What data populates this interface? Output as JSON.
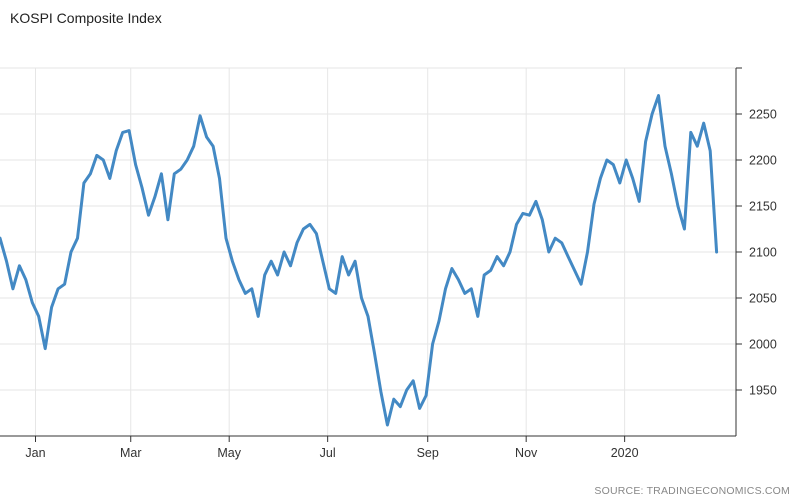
{
  "chart_data": {
    "type": "line",
    "title": "KOSPI Composite Index",
    "source": "SOURCE: TRADINGECONOMICS.COM",
    "y_ticks": [
      1950,
      2000,
      2050,
      2100,
      2150,
      2200,
      2250
    ],
    "ylim": [
      1900,
      2300
    ],
    "x_tick_labels": [
      "Jan",
      "Mar",
      "May",
      "Jul",
      "Sep",
      "Nov",
      "2020"
    ],
    "x_ticks": [
      "2019-01-01",
      "2019-03-01",
      "2019-05-01",
      "2019-07-01",
      "2019-09-01",
      "2019-11-01",
      "2020-01-01"
    ],
    "xlim": [
      "2018-12-10",
      "2020-03-10"
    ],
    "grid": true,
    "legend": "none",
    "line_color": "#4389c4",
    "series": [
      {
        "x": [
          "2018-12-10",
          "2018-12-14",
          "2018-12-18",
          "2018-12-22",
          "2018-12-26",
          "2018-12-30",
          "2019-01-03",
          "2019-01-07",
          "2019-01-11",
          "2019-01-15",
          "2019-01-19",
          "2019-01-23",
          "2019-01-27",
          "2019-01-31",
          "2019-02-04",
          "2019-02-08",
          "2019-02-12",
          "2019-02-16",
          "2019-02-20",
          "2019-02-24",
          "2019-02-28",
          "2019-03-04",
          "2019-03-08",
          "2019-03-12",
          "2019-03-16",
          "2019-03-20",
          "2019-03-24",
          "2019-03-28",
          "2019-04-01",
          "2019-04-05",
          "2019-04-09",
          "2019-04-13",
          "2019-04-17",
          "2019-04-21",
          "2019-04-25",
          "2019-04-29",
          "2019-05-03",
          "2019-05-07",
          "2019-05-11",
          "2019-05-15",
          "2019-05-19",
          "2019-05-23",
          "2019-05-27",
          "2019-05-31",
          "2019-06-04",
          "2019-06-08",
          "2019-06-12",
          "2019-06-16",
          "2019-06-20",
          "2019-06-24",
          "2019-06-28",
          "2019-07-02",
          "2019-07-06",
          "2019-07-10",
          "2019-07-14",
          "2019-07-18",
          "2019-07-22",
          "2019-07-26",
          "2019-07-30",
          "2019-08-03",
          "2019-08-07",
          "2019-08-11",
          "2019-08-15",
          "2019-08-19",
          "2019-08-23",
          "2019-08-27",
          "2019-08-31",
          "2019-09-04",
          "2019-09-08",
          "2019-09-12",
          "2019-09-16",
          "2019-09-20",
          "2019-09-24",
          "2019-09-28",
          "2019-10-02",
          "2019-10-06",
          "2019-10-10",
          "2019-10-14",
          "2019-10-18",
          "2019-10-22",
          "2019-10-26",
          "2019-10-30",
          "2019-11-03",
          "2019-11-07",
          "2019-11-11",
          "2019-11-15",
          "2019-11-19",
          "2019-11-23",
          "2019-11-27",
          "2019-12-01",
          "2019-12-05",
          "2019-12-09",
          "2019-12-13",
          "2019-12-17",
          "2019-12-21",
          "2019-12-25",
          "2019-12-29",
          "2020-01-02",
          "2020-01-06",
          "2020-01-10",
          "2020-01-14",
          "2020-01-18",
          "2020-01-22",
          "2020-01-26",
          "2020-01-30",
          "2020-02-03",
          "2020-02-07",
          "2020-02-11",
          "2020-02-15",
          "2020-02-19",
          "2020-02-23",
          "2020-02-27"
        ],
        "y": [
          2115,
          2090,
          2060,
          2085,
          2070,
          2045,
          2030,
          1995,
          2040,
          2060,
          2065,
          2100,
          2115,
          2175,
          2185,
          2205,
          2200,
          2180,
          2210,
          2230,
          2232,
          2195,
          2170,
          2140,
          2160,
          2185,
          2135,
          2185,
          2190,
          2200,
          2215,
          2248,
          2225,
          2215,
          2180,
          2115,
          2090,
          2070,
          2055,
          2060,
          2030,
          2075,
          2090,
          2075,
          2100,
          2085,
          2110,
          2125,
          2130,
          2120,
          2090,
          2060,
          2055,
          2095,
          2075,
          2090,
          2050,
          2030,
          1990,
          1948,
          1912,
          1940,
          1932,
          1950,
          1960,
          1930,
          1944,
          2000,
          2025,
          2060,
          2082,
          2070,
          2055,
          2060,
          2030,
          2075,
          2080,
          2095,
          2085,
          2100,
          2130,
          2142,
          2140,
          2155,
          2135,
          2100,
          2115,
          2110,
          2095,
          2080,
          2065,
          2100,
          2152,
          2180,
          2200,
          2195,
          2175,
          2200,
          2180,
          2155,
          2220,
          2250,
          2270,
          2215,
          2185,
          2150,
          2125,
          2230,
          2215,
          2240,
          2210,
          2100
        ]
      }
    ]
  },
  "y_axis_label_values": [
    "1950",
    "2000",
    "2050",
    "2100",
    "2150",
    "2200",
    "2250"
  ]
}
